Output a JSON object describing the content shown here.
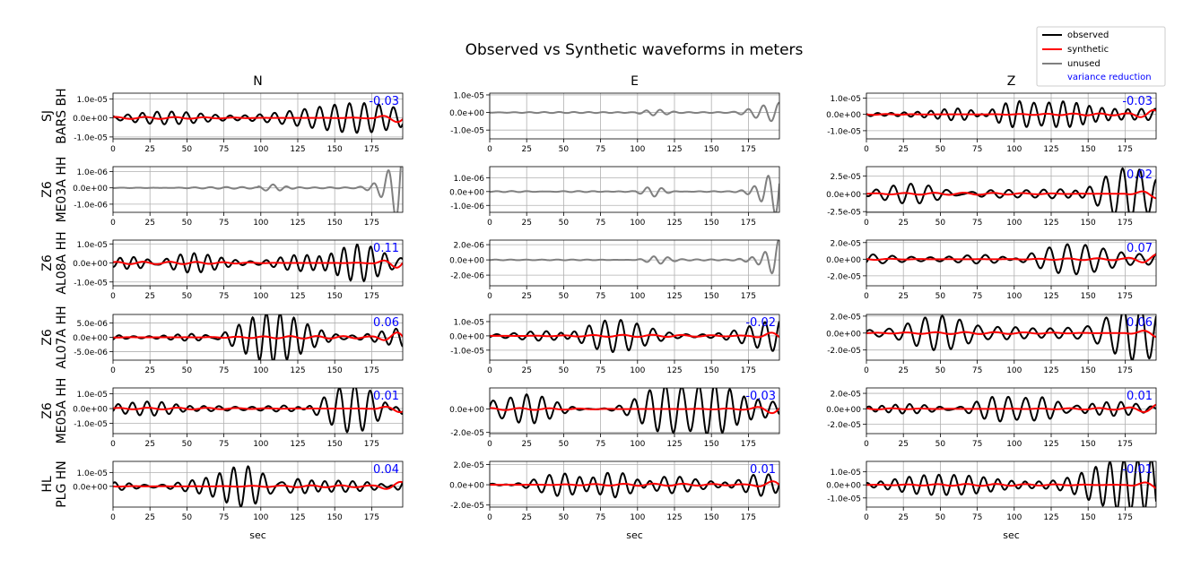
{
  "chart_data": {
    "type": "line",
    "title": "Observed vs Synthetic waveforms in meters",
    "xlabel": "sec",
    "xlim": [
      0,
      196
    ],
    "xticks": [
      0,
      25,
      50,
      75,
      100,
      125,
      150,
      175
    ],
    "grid": true,
    "legend_position": "top-right",
    "legend": [
      {
        "label": "observed",
        "color": "#000000"
      },
      {
        "label": "synthetic",
        "color": "#ff0000"
      },
      {
        "label": "unused",
        "color": "#808080"
      },
      {
        "label": "variance reduction",
        "color": "#0000ff"
      }
    ],
    "columns": [
      "N",
      "E",
      "Z"
    ],
    "stations": [
      {
        "line1": "SJ",
        "line2": "BARS BH"
      },
      {
        "line1": "Z6",
        "line2": "ME03A HH"
      },
      {
        "line1": "Z6",
        "line2": "AL08A HH"
      },
      {
        "line1": "Z6",
        "line2": "AL07A HH"
      },
      {
        "line1": "Z6",
        "line2": "ME05A HH"
      },
      {
        "line1": "HL",
        "line2": "PLG HN"
      }
    ],
    "panels": [
      {
        "row": 0,
        "col": 0,
        "status": "used",
        "vr": "-0.03",
        "ylim": [
          -1.1e-05,
          1.3e-05
        ],
        "yticks": [
          {
            "v": 1e-05,
            "label": "1.0e-05"
          },
          {
            "v": 0,
            "label": "0.0e+00"
          },
          {
            "v": -1e-05,
            "label": "-1.0e-05"
          }
        ],
        "obs_amp": 1.1e-05,
        "obs_period": 12,
        "obs_phase": 0.3,
        "syn_amp": 1.8e-06,
        "syn_period": 20,
        "seed": 1
      },
      {
        "row": 0,
        "col": 1,
        "status": "unused",
        "vr": "",
        "ylim": [
          -1.5e-05,
          1.1e-05
        ],
        "yticks": [
          {
            "v": 1e-05,
            "label": "1.0e-05"
          },
          {
            "v": 0,
            "label": "0.0e+00"
          },
          {
            "v": -1e-05,
            "label": "-1.0e-05"
          }
        ],
        "obs_amp": 1.3e-05,
        "obs_period": 12,
        "obs_phase": 0.5,
        "seed": 2
      },
      {
        "row": 0,
        "col": 2,
        "status": "used",
        "vr": "-0.03",
        "ylim": [
          -1.5e-05,
          1.3e-05
        ],
        "yticks": [
          {
            "v": 1e-05,
            "label": "1.0e-05"
          },
          {
            "v": 0,
            "label": "0.0e+00"
          },
          {
            "v": -1e-05,
            "label": "-1.0e-05"
          }
        ],
        "obs_amp": 1.25e-05,
        "obs_period": 11,
        "obs_phase": 1.1,
        "syn_amp": 2e-06,
        "syn_period": 18,
        "seed": 3
      },
      {
        "row": 1,
        "col": 0,
        "status": "unused",
        "vr": "",
        "ylim": [
          -1.5e-06,
          1.3e-06
        ],
        "yticks": [
          {
            "v": 1e-06,
            "label": "1.0e-06"
          },
          {
            "v": 0,
            "label": "0.0e+00"
          },
          {
            "v": -1e-06,
            "label": "-1.0e-06"
          }
        ],
        "obs_amp": 1.4e-06,
        "obs_period": 12,
        "obs_phase": 0.2,
        "seed": 4
      },
      {
        "row": 1,
        "col": 1,
        "status": "unused",
        "vr": "",
        "ylim": [
          -1.5e-06,
          1.8e-06
        ],
        "yticks": [
          {
            "v": 1e-06,
            "label": "1.0e-06"
          },
          {
            "v": 0,
            "label": "0.0e+00"
          },
          {
            "v": -1e-06,
            "label": "-1.0e-06"
          }
        ],
        "obs_amp": 1.6e-06,
        "obs_period": 12,
        "obs_phase": 0.8,
        "seed": 5
      },
      {
        "row": 1,
        "col": 2,
        "status": "used",
        "vr": "0.02",
        "ylim": [
          -2.6e-05,
          3.8e-05
        ],
        "yticks": [
          {
            "v": 2.5e-05,
            "label": "2.5e-05"
          },
          {
            "v": 0,
            "label": "0.0e+00"
          },
          {
            "v": -2.5e-05,
            "label": "-2.5e-05"
          }
        ],
        "obs_amp": 3.6e-05,
        "obs_period": 13,
        "obs_phase": 0.6,
        "syn_amp": 5e-06,
        "syn_period": 20,
        "seed": 6
      },
      {
        "row": 2,
        "col": 0,
        "status": "used",
        "vr": "0.11",
        "ylim": [
          -1.2e-05,
          1.2e-05
        ],
        "yticks": [
          {
            "v": 1e-05,
            "label": "1.0e-05"
          },
          {
            "v": 0,
            "label": "0.0e+00"
          },
          {
            "v": -1e-05,
            "label": "-1.0e-05"
          }
        ],
        "obs_amp": 1.15e-05,
        "obs_period": 11,
        "obs_phase": 0.4,
        "syn_amp": 2.2e-06,
        "syn_period": 18,
        "seed": 7
      },
      {
        "row": 2,
        "col": 1,
        "status": "unused",
        "vr": "",
        "ylim": [
          -3.4e-06,
          2.6e-06
        ],
        "yticks": [
          {
            "v": 2e-06,
            "label": "2.0e-06"
          },
          {
            "v": 0,
            "label": "0.0e+00"
          },
          {
            "v": -2e-06,
            "label": "-2.0e-06"
          }
        ],
        "obs_amp": 3.2e-06,
        "obs_period": 12,
        "obs_phase": 1.3,
        "seed": 8
      },
      {
        "row": 2,
        "col": 2,
        "status": "used",
        "vr": "0.07",
        "ylim": [
          -3.2e-05,
          2.3e-05
        ],
        "yticks": [
          {
            "v": 2e-05,
            "label": "2.0e-05"
          },
          {
            "v": 0,
            "label": "0.0e+00"
          },
          {
            "v": -2e-05,
            "label": "-2.0e-05"
          }
        ],
        "obs_amp": 2.6e-05,
        "obs_period": 14,
        "obs_phase": 0.9,
        "syn_amp": 4e-06,
        "syn_period": 20,
        "seed": 9
      },
      {
        "row": 3,
        "col": 0,
        "status": "used",
        "vr": "0.06",
        "ylim": [
          -8e-06,
          8e-06
        ],
        "yticks": [
          {
            "v": 5e-06,
            "label": "5.0e-06"
          },
          {
            "v": 0,
            "label": "0.0e+00"
          },
          {
            "v": -5e-06,
            "label": "-5.0e-06"
          }
        ],
        "obs_amp": 7.5e-06,
        "obs_period": 10,
        "obs_phase": 0.7,
        "syn_amp": 1.5e-06,
        "syn_period": 18,
        "seed": 10
      },
      {
        "row": 3,
        "col": 1,
        "status": "used",
        "vr": "-0.02",
        "ylim": [
          -1.7e-05,
          1.5e-05
        ],
        "yticks": [
          {
            "v": 1e-05,
            "label": "1.0e-05"
          },
          {
            "v": 0,
            "label": "0.0e+00"
          },
          {
            "v": -1e-05,
            "label": "-1.0e-05"
          }
        ],
        "obs_amp": 1.5e-05,
        "obs_period": 13,
        "obs_phase": 0.2,
        "syn_amp": 2.5e-06,
        "syn_period": 20,
        "seed": 11
      },
      {
        "row": 3,
        "col": 2,
        "status": "used",
        "vr": "0.06",
        "ylim": [
          -3.2e-05,
          2.2e-05
        ],
        "yticks": [
          {
            "v": 2e-05,
            "label": "2.0e-05"
          },
          {
            "v": 0,
            "label": "0.0e+00"
          },
          {
            "v": -2e-05,
            "label": "-2.0e-05"
          }
        ],
        "obs_amp": 2.5e-05,
        "obs_period": 13,
        "obs_phase": 1.5,
        "syn_amp": 4e-06,
        "syn_period": 20,
        "seed": 12
      },
      {
        "row": 4,
        "col": 0,
        "status": "used",
        "vr": "0.01",
        "ylim": [
          -1.7e-05,
          1.4e-05
        ],
        "yticks": [
          {
            "v": 1e-05,
            "label": "1.0e-05"
          },
          {
            "v": 0,
            "label": "0.0e+00"
          },
          {
            "v": -1e-05,
            "label": "-1.0e-05"
          }
        ],
        "obs_amp": 1.4e-05,
        "obs_period": 12,
        "obs_phase": 0.1,
        "syn_amp": 2e-06,
        "syn_period": 20,
        "seed": 13
      },
      {
        "row": 4,
        "col": 1,
        "status": "used",
        "vr": "-0.03",
        "ylim": [
          -2.1e-05,
          1.8e-05
        ],
        "yticks": [
          {
            "v": 0,
            "label": "0.0e+00"
          },
          {
            "v": -2e-05,
            "label": "-2.0e-05"
          }
        ],
        "obs_amp": 1.9e-05,
        "obs_period": 12,
        "obs_phase": 1.0,
        "syn_amp": 3e-06,
        "syn_period": 20,
        "seed": 14
      },
      {
        "row": 4,
        "col": 2,
        "status": "used",
        "vr": "0.01",
        "ylim": [
          -3.2e-05,
          2.7e-05
        ],
        "yticks": [
          {
            "v": 2e-05,
            "label": "2.0e-05"
          },
          {
            "v": 0,
            "label": "0.0e+00"
          },
          {
            "v": -2e-05,
            "label": "-2.0e-05"
          }
        ],
        "obs_amp": 2.8e-05,
        "obs_period": 12,
        "obs_phase": 0.5,
        "syn_amp": 4e-06,
        "syn_period": 20,
        "seed": 15
      },
      {
        "row": 5,
        "col": 0,
        "status": "used",
        "vr": "0.04",
        "ylim": [
          -1.5e-05,
          1.8e-05
        ],
        "yticks": [
          {
            "v": 1e-05,
            "label": "1.0e-05"
          },
          {
            "v": 0,
            "label": "0.0e+00"
          }
        ],
        "obs_amp": 1.5e-05,
        "obs_period": 12,
        "obs_phase": 0.8,
        "syn_amp": 2.5e-06,
        "syn_period": 20,
        "seed": 16
      },
      {
        "row": 5,
        "col": 1,
        "status": "used",
        "vr": "0.01",
        "ylim": [
          -2.2e-05,
          2.3e-05
        ],
        "yticks": [
          {
            "v": 2e-05,
            "label": "2.0e-05"
          },
          {
            "v": 0,
            "label": "0.0e+00"
          },
          {
            "v": -2e-05,
            "label": "-2.0e-05"
          }
        ],
        "obs_amp": 2.1e-05,
        "obs_period": 13,
        "obs_phase": 0.3,
        "syn_amp": 3.5e-06,
        "syn_period": 20,
        "seed": 17
      },
      {
        "row": 5,
        "col": 2,
        "status": "used",
        "vr": "-0.01",
        "ylim": [
          -1.7e-05,
          1.8e-05
        ],
        "yticks": [
          {
            "v": 1e-05,
            "label": "1.0e-05"
          },
          {
            "v": 0,
            "label": "0.0e+00"
          },
          {
            "v": -1e-05,
            "label": "-1.0e-05"
          }
        ],
        "obs_amp": 1.6e-05,
        "obs_period": 12,
        "obs_phase": 1.2,
        "syn_amp": 2.5e-06,
        "syn_period": 20,
        "seed": 18
      }
    ]
  }
}
